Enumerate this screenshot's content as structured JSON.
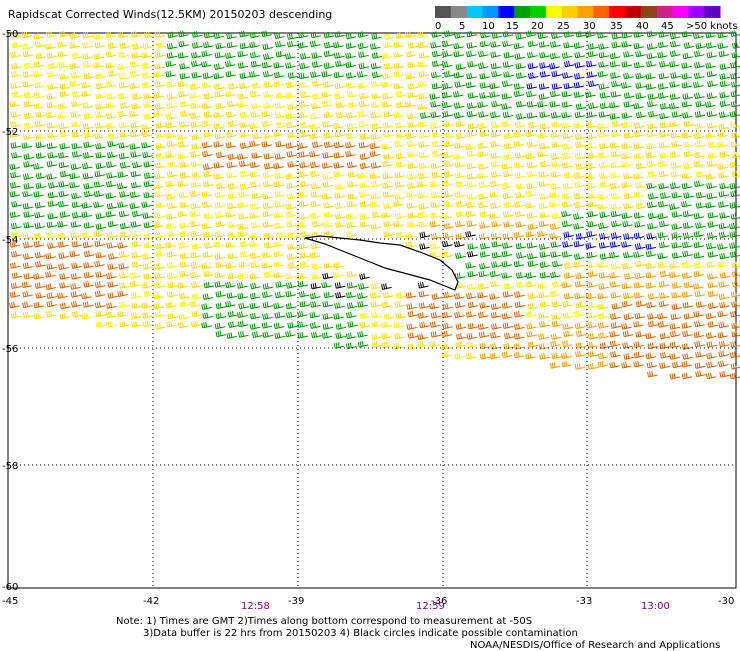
{
  "title": "Rapidscat Corrected Winds(12.5KM) 20150203 descending",
  "legend": {
    "colors": [
      "#555555",
      "#888888",
      "#00c8ff",
      "#0096ff",
      "#0000ff",
      "#00a000",
      "#00d000",
      "#ffff00",
      "#ffd000",
      "#ffa000",
      "#ff6000",
      "#ff0000",
      "#c00000",
      "#8b4513",
      "#d02090",
      "#ff00ff",
      "#a000ff",
      "#6000c0"
    ],
    "labels": [
      "0",
      "5",
      "10",
      "15",
      "20",
      "25",
      "30",
      "35",
      "40",
      "45",
      ">50 knots"
    ]
  },
  "axes": {
    "x_ticks": [
      "-45",
      "-42",
      "-39",
      "-36",
      "-33",
      "-30"
    ],
    "y_ticks": [
      "-50",
      "-52",
      "-54",
      "-56",
      "-58",
      "-60"
    ],
    "time_labels": [
      "12:58",
      "12:59",
      "13:00"
    ]
  },
  "wind_colors": {
    "yellow": "#ffd700",
    "light_yellow": "#ffee00",
    "orange": "#ff9900",
    "dark_orange": "#e06000",
    "green": "#009900",
    "blue": "#0000ff",
    "black": "#000000"
  },
  "notes": {
    "line1": "Note: 1) Times are GMT 2)Times along bottom correspond to measurement at -50S",
    "line2": "3)Data buffer is 22 hrs from 20150203 4) Black circles indicate possible contamination",
    "line3": "NOAA/NESDIS/Office of Research and Applications"
  }
}
